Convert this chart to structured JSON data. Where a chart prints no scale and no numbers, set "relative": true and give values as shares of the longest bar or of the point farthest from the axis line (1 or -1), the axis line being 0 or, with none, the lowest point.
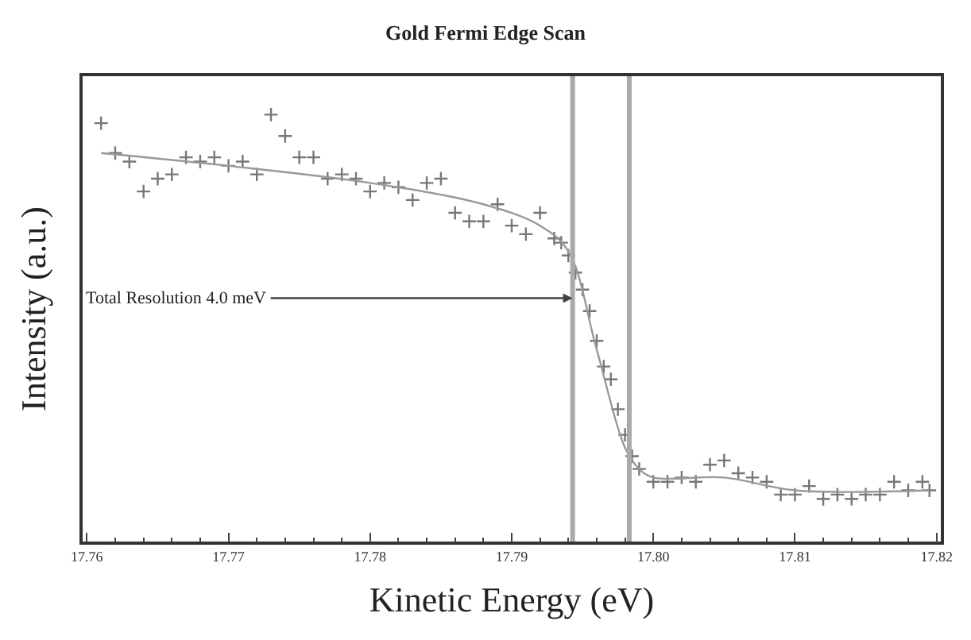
{
  "chart_data": {
    "type": "scatter",
    "title": "Gold Fermi Edge Scan",
    "xlabel": "Kinetic Energy (eV)",
    "ylabel": "Intensity (a.u.)",
    "relative": true,
    "xlim": [
      17.7597,
      17.8203
    ],
    "xticks": [
      17.76,
      17.77,
      17.78,
      17.79,
      {
        "value": 17.8,
        "label": "17.80"
      },
      17.81,
      17.82
    ],
    "marker": "cross",
    "series": [
      {
        "color": "#777777",
        "x": [
          17.761,
          17.762,
          17.763,
          17.764,
          17.765,
          17.766,
          17.767,
          17.768,
          17.769,
          17.77,
          17.771,
          17.772,
          17.773,
          17.774,
          17.775,
          17.776,
          17.777,
          17.778,
          17.779,
          17.78,
          17.781,
          17.782,
          17.783,
          17.784,
          17.785,
          17.786,
          17.787,
          17.788,
          17.789,
          17.79,
          17.791,
          17.792,
          17.793,
          17.7935,
          17.794,
          17.7945,
          17.795,
          17.7955,
          17.796,
          17.7965,
          17.797,
          17.7975,
          17.798,
          17.7985,
          17.799,
          17.8,
          17.801,
          17.802,
          17.803,
          17.804,
          17.805,
          17.806,
          17.807,
          17.808,
          17.809,
          17.81,
          17.811,
          17.812,
          17.813,
          17.814,
          17.815,
          17.816,
          17.817,
          17.818,
          17.819,
          17.8195
        ],
        "values": [
          0.98,
          0.91,
          0.89,
          0.82,
          0.85,
          0.86,
          0.9,
          0.89,
          0.9,
          0.88,
          0.89,
          0.86,
          1.0,
          0.95,
          0.9,
          0.9,
          0.85,
          0.86,
          0.85,
          0.82,
          0.84,
          0.83,
          0.8,
          0.84,
          0.85,
          0.77,
          0.75,
          0.75,
          0.79,
          0.74,
          0.72,
          0.77,
          0.71,
          0.7,
          0.67,
          0.63,
          0.59,
          0.54,
          0.47,
          0.41,
          0.38,
          0.31,
          0.25,
          0.2,
          0.17,
          0.14,
          0.14,
          0.15,
          0.14,
          0.18,
          0.19,
          0.16,
          0.15,
          0.14,
          0.11,
          0.11,
          0.13,
          0.1,
          0.11,
          0.1,
          0.11,
          0.11,
          0.14,
          0.12,
          0.14,
          0.12
        ]
      },
      {
        "type": "line",
        "marker": "none",
        "line_style": "solid",
        "color": "#999999",
        "x": [
          17.761,
          17.77,
          17.78,
          17.788,
          17.792,
          17.794,
          17.796,
          17.798,
          17.799,
          17.8,
          17.805,
          17.81,
          17.8195
        ],
        "values": [
          0.91,
          0.88,
          0.84,
          0.79,
          0.74,
          0.68,
          0.45,
          0.22,
          0.17,
          0.15,
          0.15,
          0.12,
          0.12
        ]
      }
    ],
    "ref_lines": [
      {
        "axis": "x",
        "value": 17.7943,
        "color": "#aaaaaa"
      },
      {
        "axis": "x",
        "value": 17.7983,
        "color": "#aaaaaa"
      }
    ],
    "annotations": [
      {
        "text": "Total Resolution 4.0 meV",
        "x": 17.7943,
        "y": 0.57
      }
    ]
  }
}
